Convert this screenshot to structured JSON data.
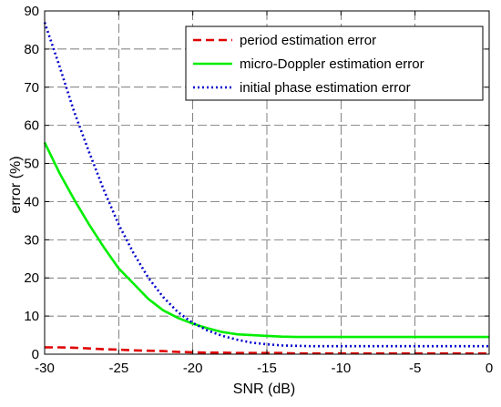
{
  "chart_data": {
    "type": "line",
    "title": "",
    "xlabel": "SNR (dB)",
    "ylabel": "error (%)",
    "xlim": [
      -30,
      0
    ],
    "ylim": [
      0,
      90
    ],
    "xticks": [
      -30,
      -25,
      -20,
      -15,
      -10,
      -5,
      0
    ],
    "yticks": [
      0,
      10,
      20,
      30,
      40,
      50,
      60,
      70,
      80,
      90
    ],
    "xtick_labels": [
      "-30",
      "-25",
      "-20",
      "-15",
      "-10",
      "-5",
      "0"
    ],
    "ytick_labels": [
      "0",
      "10",
      "20",
      "30",
      "40",
      "50",
      "60",
      "70",
      "80",
      "90"
    ],
    "grid": true,
    "legend_position": "top-right",
    "series": [
      {
        "name": "period estimation error",
        "color": "#e00000",
        "dash": "dashed",
        "x": [
          -30,
          -29,
          -28,
          -27,
          -26,
          -25,
          -24,
          -23,
          -22,
          -21,
          -20,
          -19,
          -18,
          -17,
          -16,
          -15,
          -14,
          -13,
          -12,
          -11,
          -10,
          -9,
          -8,
          -7,
          -6,
          -5,
          -4,
          -3,
          -2,
          -1,
          0
        ],
        "y": [
          1.8,
          1.8,
          1.7,
          1.5,
          1.3,
          1.2,
          1.0,
          0.9,
          0.8,
          0.6,
          0.5,
          0.4,
          0.4,
          0.3,
          0.3,
          0.3,
          0.3,
          0.2,
          0.2,
          0.2,
          0.2,
          0.2,
          0.2,
          0.2,
          0.2,
          0.2,
          0.2,
          0.2,
          0.2,
          0.2,
          0.2
        ]
      },
      {
        "name": "micro-Doppler estimation error",
        "color": "#00ee00",
        "dash": "solid",
        "x": [
          -30,
          -29,
          -28,
          -27,
          -26,
          -25,
          -24,
          -23,
          -22,
          -21,
          -20,
          -19,
          -18,
          -17,
          -16,
          -15,
          -14,
          -13,
          -12,
          -11,
          -10,
          -9,
          -8,
          -7,
          -6,
          -5,
          -4,
          -3,
          -2,
          -1,
          0
        ],
        "y": [
          55.5,
          47.5,
          40.5,
          34.0,
          28.0,
          22.5,
          18.5,
          14.5,
          11.5,
          9.5,
          8.0,
          6.8,
          5.8,
          5.2,
          5.0,
          4.8,
          4.6,
          4.5,
          4.5,
          4.5,
          4.5,
          4.5,
          4.5,
          4.5,
          4.5,
          4.5,
          4.5,
          4.5,
          4.5,
          4.5,
          4.5
        ]
      },
      {
        "name": "initial phase estimation error",
        "color": "#0000cc",
        "dash": "dotted",
        "x": [
          -30,
          -29,
          -28,
          -27,
          -26,
          -25,
          -24,
          -23,
          -22,
          -21,
          -20,
          -19,
          -18,
          -17,
          -16,
          -15,
          -14,
          -13,
          -12,
          -11,
          -10,
          -9,
          -8,
          -7,
          -6,
          -5,
          -4,
          -3,
          -2,
          -1,
          0
        ],
        "y": [
          87.0,
          75.5,
          63.5,
          53.0,
          43.0,
          34.0,
          26.5,
          20.0,
          15.0,
          11.0,
          8.2,
          6.2,
          4.8,
          3.8,
          3.0,
          2.6,
          2.3,
          2.2,
          2.1,
          2.1,
          2.1,
          2.1,
          2.1,
          2.1,
          2.1,
          2.1,
          2.1,
          2.1,
          2.1,
          2.1,
          2.1
        ]
      }
    ]
  }
}
